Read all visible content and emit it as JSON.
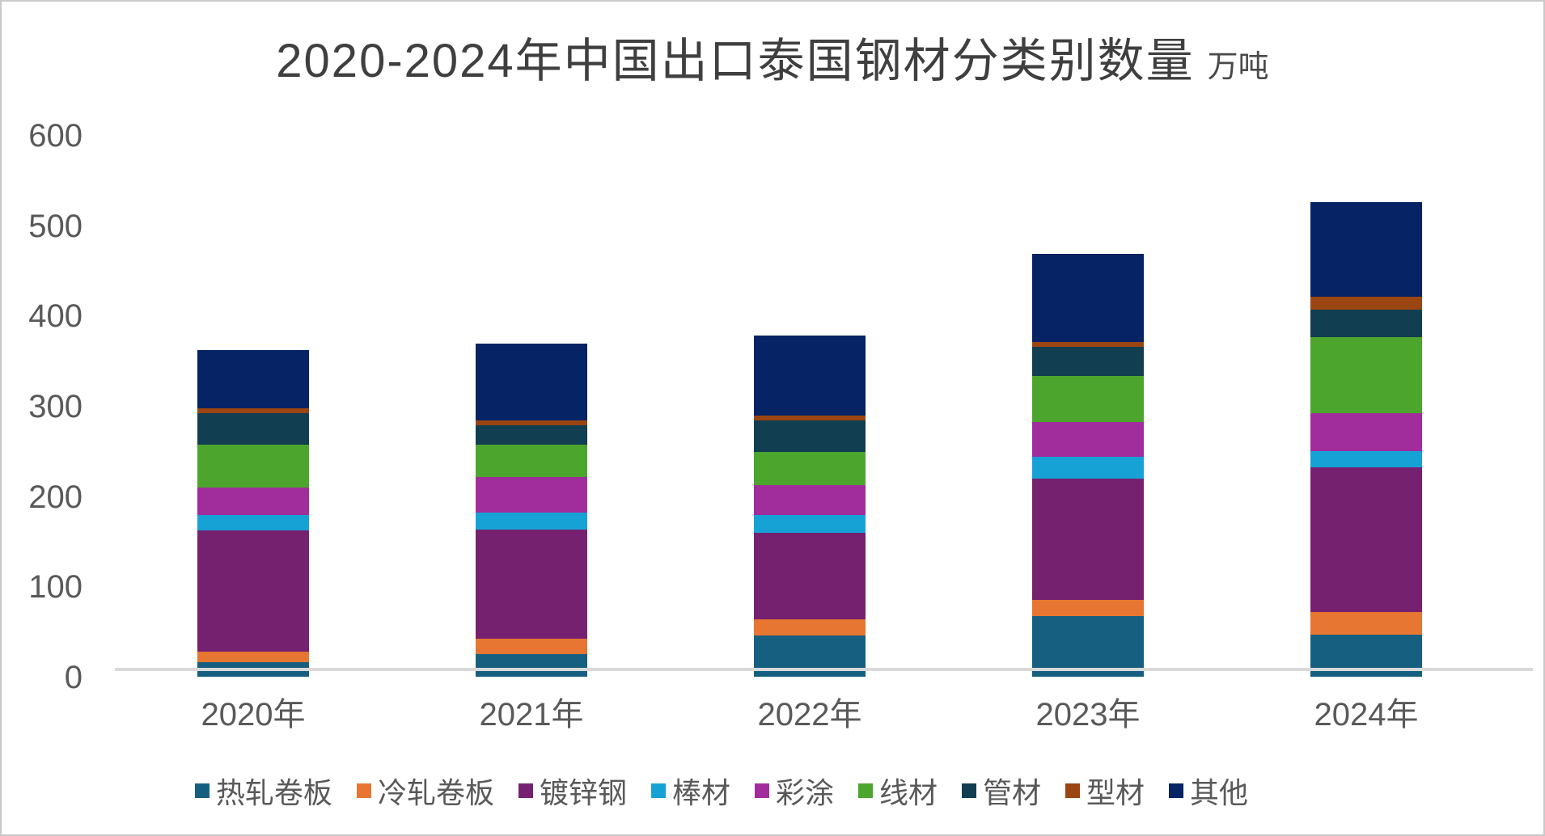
{
  "title": {
    "main": "2020-2024年中国出口泰国钢材分类别数量",
    "unit": "万吨"
  },
  "chart_data": {
    "type": "bar",
    "stacked": true,
    "title": "2020-2024年中国出口泰国钢材分类别数量",
    "unit": "万吨",
    "categories": [
      "2020年",
      "2021年",
      "2022年",
      "2023年",
      "2024年"
    ],
    "series": [
      {
        "name": "热轧卷板",
        "color": "#175f80",
        "values": [
          16,
          25,
          46,
          67,
          47
        ]
      },
      {
        "name": "冷轧卷板",
        "color": "#e67631",
        "values": [
          12,
          17,
          18,
          18,
          25
        ]
      },
      {
        "name": "镀锌钢",
        "color": "#762170",
        "values": [
          134,
          121,
          95,
          134,
          160
        ]
      },
      {
        "name": "棒材",
        "color": "#17a2d6",
        "values": [
          17,
          19,
          20,
          25,
          18
        ]
      },
      {
        "name": "彩涂",
        "color": "#a02d9b",
        "values": [
          31,
          39,
          33,
          38,
          42
        ]
      },
      {
        "name": "线材",
        "color": "#4ca52d",
        "values": [
          47,
          36,
          37,
          51,
          84
        ]
      },
      {
        "name": "管材",
        "color": "#113e50",
        "values": [
          35,
          22,
          35,
          32,
          31
        ]
      },
      {
        "name": "型材",
        "color": "#9a4512",
        "values": [
          5,
          5,
          5,
          6,
          14
        ]
      },
      {
        "name": "其他",
        "color": "#062365",
        "values": [
          65,
          85,
          89,
          97,
          105
        ]
      }
    ],
    "totals": [
      362,
      369,
      378,
      468,
      526
    ],
    "ylim": [
      0,
      600
    ],
    "y_ticks": [
      600,
      500,
      400,
      300,
      200,
      100,
      0
    ],
    "grid": false,
    "axis_line_color": "#d9d9d9",
    "legend_position": "bottom"
  }
}
